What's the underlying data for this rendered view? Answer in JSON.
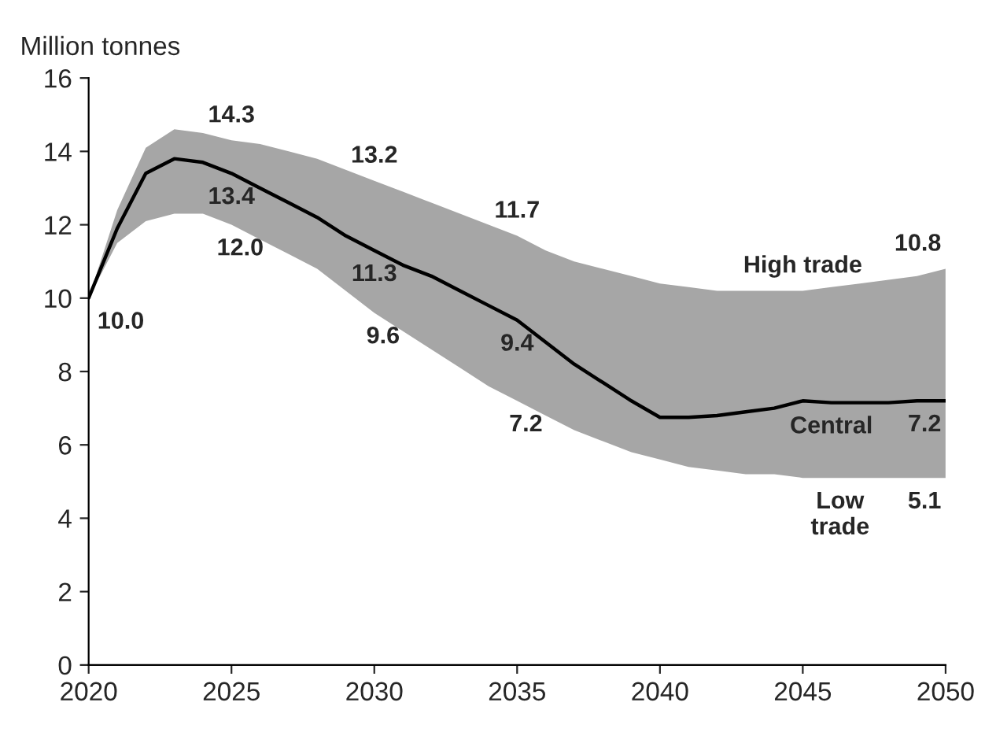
{
  "chart_data": {
    "type": "line",
    "ylabel": "Million tonnes",
    "x": [
      2020,
      2021,
      2022,
      2023,
      2024,
      2025,
      2026,
      2027,
      2028,
      2029,
      2030,
      2031,
      2032,
      2033,
      2034,
      2035,
      2036,
      2037,
      2038,
      2039,
      2040,
      2041,
      2042,
      2043,
      2044,
      2045,
      2046,
      2047,
      2048,
      2049,
      2050
    ],
    "series": [
      {
        "color": "#000000",
        "values": [
          10.0,
          11.9,
          13.4,
          13.8,
          13.7,
          13.4,
          13.0,
          12.6,
          12.2,
          11.7,
          11.3,
          10.9,
          10.6,
          10.2,
          9.8,
          9.4,
          8.8,
          8.2,
          7.7,
          7.2,
          6.75,
          6.75,
          6.8,
          6.9,
          7.0,
          7.2,
          7.15,
          7.15,
          7.15,
          7.2,
          7.2
        ],
        "upper": [
          10.0,
          12.4,
          14.1,
          14.6,
          14.5,
          14.3,
          14.2,
          14.0,
          13.8,
          13.5,
          13.2,
          12.9,
          12.6,
          12.3,
          12.0,
          11.7,
          11.3,
          11.0,
          10.8,
          10.6,
          10.4,
          10.3,
          10.2,
          10.2,
          10.2,
          10.2,
          10.3,
          10.4,
          10.5,
          10.6,
          10.8
        ],
        "lower": [
          10.0,
          11.5,
          12.1,
          12.3,
          12.3,
          12.0,
          11.6,
          11.2,
          10.8,
          10.2,
          9.6,
          9.1,
          8.6,
          8.1,
          7.6,
          7.2,
          6.8,
          6.4,
          6.1,
          5.8,
          5.6,
          5.4,
          5.3,
          5.2,
          5.2,
          5.1,
          5.1,
          5.1,
          5.1,
          5.1,
          5.1
        ]
      }
    ],
    "annotations": [
      {
        "text": "10.0",
        "x": 2020,
        "y": 10.0
      },
      {
        "text": "14.3",
        "x": 2025,
        "y": 14.3
      },
      {
        "text": "13.2",
        "x": 2030,
        "y": 13.2
      },
      {
        "text": "11.7",
        "x": 2035,
        "y": 11.7
      },
      {
        "text": "10.8",
        "x": 2050,
        "y": 10.8
      },
      {
        "text": "13.4",
        "x": 2025,
        "y": 13.4
      },
      {
        "text": "11.3",
        "x": 2030,
        "y": 11.3
      },
      {
        "text": "9.4",
        "x": 2035,
        "y": 9.4
      },
      {
        "text": "7.2",
        "x": 2050,
        "y": 7.2
      },
      {
        "text": "12.0",
        "x": 2025,
        "y": 12.0
      },
      {
        "text": "9.6",
        "x": 2030,
        "y": 9.6
      },
      {
        "text": "7.2",
        "x": 2035,
        "y": 7.2
      },
      {
        "text": "5.1",
        "x": 2050,
        "y": 5.1
      },
      {
        "text": "High trade",
        "x": 2045,
        "y": 10.2
      },
      {
        "text": "Central",
        "x": 2046,
        "y": 7.15
      },
      {
        "text": "Low trade",
        "x": 2046,
        "y": 5.1
      }
    ],
    "xlim": [
      2020,
      2050
    ],
    "xticks": [
      2020,
      2025,
      2030,
      2035,
      2040,
      2045,
      2050
    ],
    "ylim": [
      0,
      16
    ],
    "yticks": [
      0,
      2,
      4,
      6,
      8,
      10,
      12,
      14,
      16
    ],
    "grid": false,
    "marker": "none",
    "line_style": "solid"
  }
}
